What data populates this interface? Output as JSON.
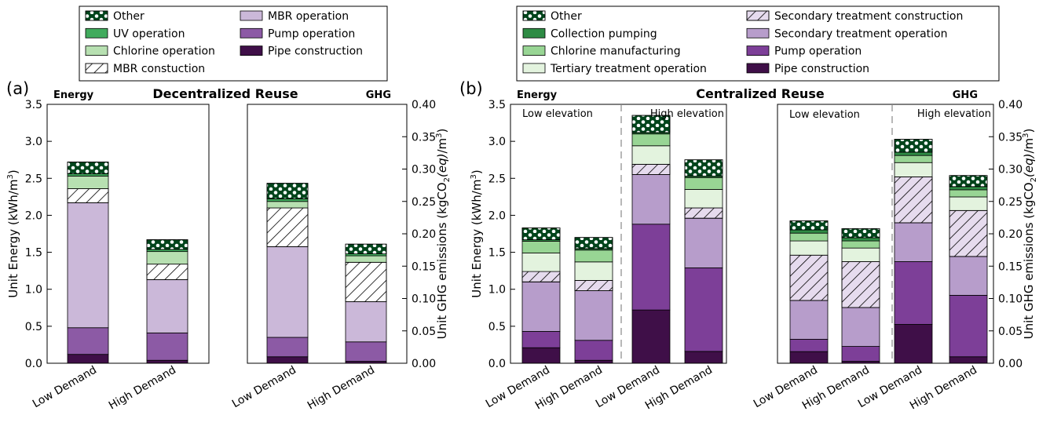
{
  "panels": {
    "a": {
      "label": "(a)",
      "title": "Decentralized Reuse"
    },
    "b": {
      "label": "(b)",
      "title": "Centralized Reuse"
    }
  },
  "legends": {
    "a": [
      {
        "name": "Other",
        "pattern": "dots",
        "color": "#00441b"
      },
      {
        "name": "UV operation",
        "pattern": "solid",
        "color": "#41ab5d"
      },
      {
        "name": "Chlorine operation",
        "pattern": "solid",
        "color": "#b7e0b1"
      },
      {
        "name": "MBR constuction",
        "pattern": "hatch",
        "color": "#ffffff"
      },
      {
        "name": "MBR operation",
        "pattern": "solid",
        "color": "#cbb8d9"
      },
      {
        "name": "Pump operation",
        "pattern": "solid",
        "color": "#8c5aa5"
      },
      {
        "name": "Pipe construction",
        "pattern": "solid",
        "color": "#3f0f48"
      }
    ],
    "b": [
      {
        "name": "Other",
        "pattern": "dots",
        "color": "#00441b"
      },
      {
        "name": "Collection pumping",
        "pattern": "solid",
        "color": "#2e8b44"
      },
      {
        "name": "Chlorine manufacturing",
        "pattern": "solid",
        "color": "#98d594"
      },
      {
        "name": "Tertiary treatment operation",
        "pattern": "solid",
        "color": "#e3f3de"
      },
      {
        "name": "Secondary treatment construction",
        "pattern": "hatch",
        "color": "#e6dbee"
      },
      {
        "name": "Secondary treatment operation",
        "pattern": "solid",
        "color": "#b79dcb"
      },
      {
        "name": "Pump operation",
        "pattern": "solid",
        "color": "#7d3f98"
      },
      {
        "name": "Pipe construction",
        "pattern": "solid",
        "color": "#3f0f48"
      }
    ]
  },
  "axes": {
    "energy_label": "Unit Energy (kWh/m",
    "energy_sup": "3",
    "energy_close": ")",
    "ghg_label": "Unit GHG emissions (kgCO",
    "ghg_sub": "2",
    "ghg_eq": "(eq)",
    "ghg_tail": "/m",
    "ghg_sup": "3",
    "ghg_close": ")",
    "energy_ticks": [
      "0.0",
      "0.5",
      "1.0",
      "1.5",
      "2.0",
      "2.5",
      "3.0",
      "3.5"
    ],
    "ghg_ticks": [
      "0.00",
      "0.05",
      "0.10",
      "0.15",
      "0.20",
      "0.25",
      "0.30",
      "0.35",
      "0.40"
    ]
  },
  "region_labels": {
    "low": "Low elevation",
    "high": "High elevation"
  },
  "chart_data": [
    {
      "type": "bar",
      "stacked": true,
      "title": "Energy",
      "panel": "a",
      "ylabel": "Unit Energy (kWh/m3)",
      "ylim": [
        0,
        3.5
      ],
      "categories": [
        "Low Demand",
        "High Demand"
      ],
      "series": [
        {
          "name": "Pipe construction",
          "values": [
            0.12,
            0.04
          ]
        },
        {
          "name": "Pump operation",
          "values": [
            0.36,
            0.37
          ]
        },
        {
          "name": "MBR operation",
          "values": [
            1.69,
            0.72
          ]
        },
        {
          "name": "MBR constuction",
          "values": [
            0.19,
            0.21
          ]
        },
        {
          "name": "Chlorine operation",
          "values": [
            0.17,
            0.17
          ]
        },
        {
          "name": "UV operation",
          "values": [
            0.03,
            0.03
          ]
        },
        {
          "name": "Other",
          "values": [
            0.16,
            0.13
          ]
        }
      ]
    },
    {
      "type": "bar",
      "stacked": true,
      "title": "GHG",
      "panel": "a",
      "ylabel": "Unit GHG emissions (kgCO2(eq)/m3)",
      "ylim": [
        0,
        0.4
      ],
      "categories": [
        "Low Demand",
        "High Demand"
      ],
      "series": [
        {
          "name": "Pipe construction",
          "values": [
            0.01,
            0.003
          ]
        },
        {
          "name": "Pump operation",
          "values": [
            0.03,
            0.03
          ]
        },
        {
          "name": "MBR operation",
          "values": [
            0.14,
            0.062
          ]
        },
        {
          "name": "MBR constuction",
          "values": [
            0.06,
            0.061
          ]
        },
        {
          "name": "Chlorine operation",
          "values": [
            0.01,
            0.01
          ]
        },
        {
          "name": "UV operation",
          "values": [
            0.004,
            0.003
          ]
        },
        {
          "name": "Other",
          "values": [
            0.024,
            0.015
          ]
        }
      ]
    },
    {
      "type": "bar",
      "stacked": true,
      "title": "Energy",
      "panel": "b",
      "ylabel": "Unit Energy (kWh/m3)",
      "ylim": [
        0,
        3.5
      ],
      "categories": [
        "Low Demand",
        "High Demand",
        "Low Demand",
        "High Demand"
      ],
      "groups": [
        "Low elevation",
        "Low elevation",
        "High elevation",
        "High elevation"
      ],
      "series": [
        {
          "name": "Pipe construction",
          "values": [
            0.21,
            0.04,
            0.72,
            0.16
          ]
        },
        {
          "name": "Pump operation",
          "values": [
            0.22,
            0.27,
            1.16,
            1.13
          ]
        },
        {
          "name": "Secondary treatment operation",
          "values": [
            0.67,
            0.67,
            0.67,
            0.67
          ]
        },
        {
          "name": "Secondary treatment construction",
          "values": [
            0.14,
            0.14,
            0.14,
            0.14
          ]
        },
        {
          "name": "Tertiary treatment operation",
          "values": [
            0.25,
            0.25,
            0.25,
            0.25
          ]
        },
        {
          "name": "Chlorine manufacturing",
          "values": [
            0.16,
            0.16,
            0.16,
            0.16
          ]
        },
        {
          "name": "Collection pumping",
          "values": [
            0.02,
            0.02,
            0.02,
            0.02
          ]
        },
        {
          "name": "Other",
          "values": [
            0.16,
            0.15,
            0.23,
            0.22
          ]
        }
      ]
    },
    {
      "type": "bar",
      "stacked": true,
      "title": "GHG",
      "panel": "b",
      "ylabel": "Unit GHG emissions (kgCO2(eq)/m3)",
      "ylim": [
        0,
        0.4
      ],
      "categories": [
        "Low Demand",
        "High Demand",
        "Low Demand",
        "High Demand"
      ],
      "groups": [
        "Low elevation",
        "Low elevation",
        "High elevation",
        "High elevation"
      ],
      "series": [
        {
          "name": "Pipe construction",
          "values": [
            0.018,
            0.003,
            0.06,
            0.01
          ]
        },
        {
          "name": "Pump operation",
          "values": [
            0.019,
            0.023,
            0.097,
            0.095
          ]
        },
        {
          "name": "Secondary treatment operation",
          "values": [
            0.06,
            0.06,
            0.06,
            0.06
          ]
        },
        {
          "name": "Secondary treatment construction",
          "values": [
            0.07,
            0.071,
            0.071,
            0.071
          ]
        },
        {
          "name": "Tertiary treatment operation",
          "values": [
            0.022,
            0.021,
            0.022,
            0.021
          ]
        },
        {
          "name": "Chlorine manufacturing",
          "values": [
            0.012,
            0.011,
            0.011,
            0.011
          ]
        },
        {
          "name": "Collection pumping",
          "values": [
            0.005,
            0.005,
            0.005,
            0.005
          ]
        },
        {
          "name": "Other",
          "values": [
            0.014,
            0.014,
            0.02,
            0.017
          ]
        }
      ]
    }
  ]
}
